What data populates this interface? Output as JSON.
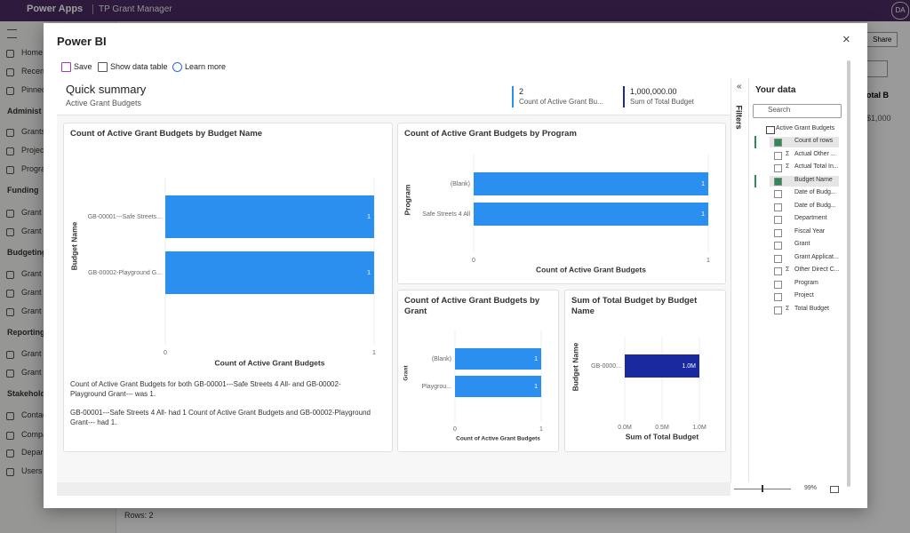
{
  "app": {
    "brand": "Power Apps",
    "name": "TP Grant Manager",
    "user": "DA",
    "share": "Share",
    "nav": [
      {
        "text": "Home",
        "header": false
      },
      {
        "text": "Recent",
        "header": false
      },
      {
        "text": "Pinned",
        "header": false
      },
      {
        "text": "Administ",
        "header": true
      },
      {
        "text": "Grants",
        "header": false
      },
      {
        "text": "Project",
        "header": false
      },
      {
        "text": "Progra",
        "header": false
      },
      {
        "text": "Funding",
        "header": true
      },
      {
        "text": "Grant I",
        "header": false
      },
      {
        "text": "Grant I",
        "header": false
      },
      {
        "text": "Budgeting",
        "header": true
      },
      {
        "text": "Grant I",
        "header": false
      },
      {
        "text": "Grant I",
        "header": false
      },
      {
        "text": "Grant I",
        "header": false
      },
      {
        "text": "Reporting",
        "header": true
      },
      {
        "text": "Grant",
        "header": false
      },
      {
        "text": "Grant (",
        "header": false
      },
      {
        "text": "Stakeholde",
        "header": true
      },
      {
        "text": "Contac",
        "header": false
      },
      {
        "text": "Compa",
        "header": false
      },
      {
        "text": "Depar",
        "header": false
      },
      {
        "text": "Users",
        "header": false
      }
    ],
    "column_header": "otal B",
    "cell": "$1,000",
    "rows": "Rows: 2"
  },
  "dialog": {
    "title": "Power BI",
    "toolbar": [
      "Save",
      "Show data table",
      "Learn more"
    ],
    "zoom": "99%"
  },
  "summary": {
    "title": "Quick summary",
    "subtitle": "Active Grant Budgets",
    "kpis": [
      {
        "value": "2",
        "label": "Count of Active Grant Bu...",
        "color": "#2b8ff0"
      },
      {
        "value": "1,000,000.00",
        "label": "Sum of Total Budget",
        "color": "#1a2a9e"
      }
    ]
  },
  "visuals": [
    {
      "type": "bar",
      "title": "Count of Active Grant Budgets by Budget Name",
      "categories": [
        "GB-00001---Safe Streets...",
        "GB-00002-Playground G..."
      ],
      "values": [
        1,
        1
      ],
      "color": "#2b8ff0",
      "xlim": [
        0,
        1
      ],
      "xticks": [
        0,
        1
      ],
      "x_label": "Count of Active Grant Budgets",
      "y_label": "Budget Name"
    },
    {
      "type": "bar",
      "title": "Count of Active Grant Budgets by Program",
      "categories": [
        "(Blank)",
        "Safe Streets 4 All"
      ],
      "values": [
        1,
        1
      ],
      "color": "#2b8ff0",
      "xlim": [
        0,
        1
      ],
      "xticks": [
        0,
        1
      ],
      "x_label": "Count of Active Grant Budgets",
      "y_label": "Program"
    },
    {
      "type": "bar",
      "title": "Count of Active Grant Budgets by Grant",
      "categories": [
        "(Blank)",
        "Playgrou..."
      ],
      "values": [
        1,
        1
      ],
      "color": "#2b8ff0",
      "xlim": [
        0,
        1
      ],
      "xticks": [
        0,
        1
      ],
      "x_label": "Count of Active Grant Budgets",
      "y_label": "Grant"
    },
    {
      "type": "bar",
      "title": "Sum of Total Budget by Budget Name",
      "categories": [
        "GB-0000..."
      ],
      "values": [
        1000000
      ],
      "value_labels": [
        "1.0M"
      ],
      "color": "#1a2a9e",
      "xlim": [
        0,
        1000000
      ],
      "xticks": [
        {
          "value": 0,
          "label": "0.0M"
        },
        {
          "value": 500000,
          "label": "0.5M"
        },
        {
          "value": 1000000,
          "label": "1.0M"
        }
      ],
      "x_label": "Sum of Total Budget",
      "y_label": "Budget Name"
    }
  ],
  "narrative": [
    "Count of Active Grant Budgets for both GB-00001---Safe Streets 4 All-  and GB-00002-Playground Grant---  was 1.",
    "GB-00001---Safe Streets 4 All-  had 1 Count of Active Grant Budgets and GB-00002-Playground Grant---  had 1."
  ],
  "data_pane": {
    "collapse": "«",
    "filters": "Filters",
    "title": "Your data",
    "search": "Search",
    "table": "Active Grant Budgets",
    "fields": [
      {
        "label": "Count of rows",
        "checked": true,
        "sigma": false
      },
      {
        "label": "Actual Other ...",
        "checked": false,
        "sigma": true
      },
      {
        "label": "Actual Total In...",
        "checked": false,
        "sigma": true
      },
      {
        "label": "Budget Name",
        "checked": true,
        "sigma": false
      },
      {
        "label": "Date of Budg...",
        "checked": false,
        "sigma": false
      },
      {
        "label": "Date of Budg...",
        "checked": false,
        "sigma": false
      },
      {
        "label": "Department",
        "checked": false,
        "sigma": false
      },
      {
        "label": "Fiscal Year",
        "checked": false,
        "sigma": false
      },
      {
        "label": "Grant",
        "checked": false,
        "sigma": false
      },
      {
        "label": "Grant Applicat...",
        "checked": false,
        "sigma": false
      },
      {
        "label": "Other Direct C...",
        "checked": false,
        "sigma": true
      },
      {
        "label": "Program",
        "checked": false,
        "sigma": false
      },
      {
        "label": "Project",
        "checked": false,
        "sigma": false
      },
      {
        "label": "Total Budget",
        "checked": false,
        "sigma": true
      }
    ]
  }
}
